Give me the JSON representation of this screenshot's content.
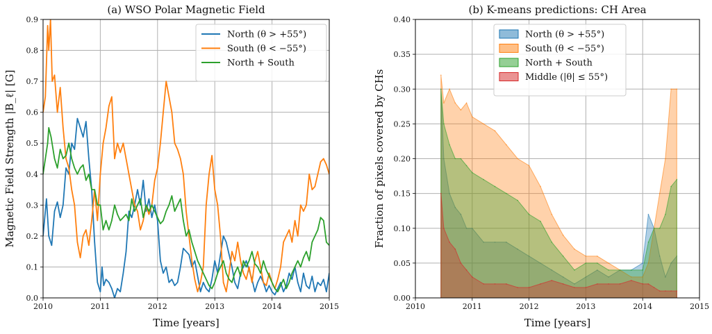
{
  "chart_data": [
    {
      "type": "line",
      "title": "(a) WSO Polar Magnetic Field",
      "xlabel": "Time [years]",
      "ylabel": "Magnetic Field Strength |B_ℓ| [G]",
      "xlim": [
        2010,
        2015
      ],
      "ylim": [
        0,
        0.9
      ],
      "xticks": [
        "2010",
        "2011",
        "2012",
        "2013",
        "2014",
        "2015"
      ],
      "yticks": [
        "0.0",
        "0.1",
        "0.2",
        "0.3",
        "0.4",
        "0.5",
        "0.6",
        "0.7",
        "0.8",
        "0.9"
      ],
      "grid": true,
      "legend_position": "top-right",
      "series": [
        {
          "name": "North (θ > +55°)",
          "color": "#1f77b4",
          "x": [
            2010.0,
            2010.06,
            2010.1,
            2010.15,
            2010.2,
            2010.25,
            2010.3,
            2010.35,
            2010.4,
            2010.45,
            2010.5,
            2010.55,
            2010.6,
            2010.65,
            2010.7,
            2010.75,
            2010.8,
            2010.85,
            2010.9,
            2010.95,
            2011.0,
            2011.03,
            2011.06,
            2011.1,
            2011.15,
            2011.2,
            2011.25,
            2011.3,
            2011.35,
            2011.4,
            2011.45,
            2011.5,
            2011.55,
            2011.6,
            2011.65,
            2011.7,
            2011.75,
            2011.8,
            2011.85,
            2011.9,
            2011.95,
            2012.0,
            2012.05,
            2012.1,
            2012.15,
            2012.2,
            2012.25,
            2012.3,
            2012.35,
            2012.4,
            2012.45,
            2012.5,
            2012.55,
            2012.6,
            2012.65,
            2012.7,
            2012.75,
            2012.8,
            2012.85,
            2012.9,
            2012.95,
            2013.0,
            2013.05,
            2013.1,
            2013.15,
            2013.2,
            2013.25,
            2013.3,
            2013.35,
            2013.4,
            2013.45,
            2013.5,
            2013.55,
            2013.6,
            2013.65,
            2013.7,
            2013.75,
            2013.8,
            2013.85,
            2013.9,
            2013.95,
            2014.0,
            2014.05,
            2014.1,
            2014.15,
            2014.2,
            2014.25,
            2014.3,
            2014.35,
            2014.4,
            2014.45,
            2014.5,
            2014.55,
            2014.6,
            2014.65,
            2014.7,
            2014.75,
            2014.8,
            2014.85,
            2014.9,
            2014.95,
            2015.0
          ],
          "values": [
            0.2,
            0.32,
            0.2,
            0.17,
            0.28,
            0.31,
            0.26,
            0.3,
            0.42,
            0.4,
            0.5,
            0.48,
            0.58,
            0.55,
            0.52,
            0.57,
            0.45,
            0.35,
            0.18,
            0.05,
            0.02,
            0.1,
            0.04,
            0.06,
            0.05,
            0.03,
            0.0,
            0.03,
            0.02,
            0.08,
            0.15,
            0.28,
            0.26,
            0.3,
            0.35,
            0.3,
            0.38,
            0.28,
            0.32,
            0.26,
            0.3,
            0.25,
            0.12,
            0.08,
            0.1,
            0.05,
            0.06,
            0.04,
            0.05,
            0.1,
            0.16,
            0.15,
            0.14,
            0.1,
            0.12,
            0.07,
            0.02,
            0.05,
            0.03,
            0.02,
            0.06,
            0.12,
            0.08,
            0.14,
            0.2,
            0.18,
            0.14,
            0.1,
            0.05,
            0.03,
            0.08,
            0.1,
            0.12,
            0.09,
            0.06,
            0.02,
            0.05,
            0.07,
            0.05,
            0.02,
            0.04,
            0.02,
            0.01,
            0.03,
            0.05,
            0.02,
            0.04,
            0.08,
            0.06,
            0.1,
            0.05,
            0.02,
            0.08,
            0.04,
            0.03,
            0.07,
            0.02,
            0.05,
            0.04,
            0.06,
            0.02,
            0.08
          ]
        },
        {
          "name": "South (θ < −55°)",
          "color": "#ff7f0e",
          "x": [
            2010.0,
            2010.04,
            2010.08,
            2010.1,
            2010.13,
            2010.16,
            2010.2,
            2010.25,
            2010.3,
            2010.35,
            2010.4,
            2010.45,
            2010.5,
            2010.55,
            2010.6,
            2010.65,
            2010.7,
            2010.75,
            2010.8,
            2010.85,
            2010.9,
            2010.95,
            2011.0,
            2011.05,
            2011.1,
            2011.15,
            2011.2,
            2011.25,
            2011.3,
            2011.35,
            2011.4,
            2011.45,
            2011.5,
            2011.55,
            2011.6,
            2011.65,
            2011.7,
            2011.75,
            2011.8,
            2011.85,
            2011.9,
            2011.95,
            2012.0,
            2012.05,
            2012.1,
            2012.15,
            2012.2,
            2012.25,
            2012.3,
            2012.35,
            2012.4,
            2012.45,
            2012.5,
            2012.55,
            2012.6,
            2012.65,
            2012.7,
            2012.75,
            2012.8,
            2012.85,
            2012.9,
            2012.95,
            2013.0,
            2013.05,
            2013.1,
            2013.15,
            2013.2,
            2013.25,
            2013.3,
            2013.35,
            2013.4,
            2013.45,
            2013.5,
            2013.55,
            2013.6,
            2013.65,
            2013.7,
            2013.75,
            2013.8,
            2013.85,
            2013.9,
            2013.95,
            2014.0,
            2014.05,
            2014.1,
            2014.15,
            2014.2,
            2014.25,
            2014.3,
            2014.35,
            2014.4,
            2014.45,
            2014.5,
            2014.55,
            2014.6,
            2014.65,
            2014.7,
            2014.75,
            2014.8,
            2014.85,
            2014.9,
            2014.95,
            2015.0
          ],
          "values": [
            0.6,
            0.65,
            0.88,
            0.8,
            0.9,
            0.7,
            0.72,
            0.6,
            0.68,
            0.55,
            0.45,
            0.42,
            0.35,
            0.3,
            0.18,
            0.13,
            0.2,
            0.22,
            0.17,
            0.25,
            0.35,
            0.25,
            0.4,
            0.5,
            0.55,
            0.62,
            0.65,
            0.45,
            0.5,
            0.47,
            0.5,
            0.45,
            0.4,
            0.35,
            0.3,
            0.28,
            0.22,
            0.25,
            0.3,
            0.27,
            0.3,
            0.38,
            0.42,
            0.5,
            0.6,
            0.7,
            0.65,
            0.6,
            0.5,
            0.48,
            0.45,
            0.4,
            0.28,
            0.2,
            0.12,
            0.06,
            0.02,
            0.05,
            0.1,
            0.3,
            0.4,
            0.46,
            0.35,
            0.3,
            0.2,
            0.05,
            0.02,
            0.08,
            0.15,
            0.12,
            0.18,
            0.12,
            0.08,
            0.06,
            0.1,
            0.05,
            0.12,
            0.15,
            0.1,
            0.05,
            0.04,
            0.08,
            0.05,
            0.03,
            0.06,
            0.1,
            0.18,
            0.2,
            0.22,
            0.18,
            0.25,
            0.2,
            0.3,
            0.28,
            0.3,
            0.4,
            0.35,
            0.36,
            0.4,
            0.44,
            0.45,
            0.43,
            0.4
          ]
        },
        {
          "name": "North + South",
          "color": "#2ca02c",
          "x": [
            2010.0,
            2010.04,
            2010.08,
            2010.1,
            2010.14,
            2010.2,
            2010.25,
            2010.3,
            2010.35,
            2010.4,
            2010.45,
            2010.5,
            2010.55,
            2010.6,
            2010.65,
            2010.7,
            2010.75,
            2010.8,
            2010.85,
            2010.9,
            2010.95,
            2011.0,
            2011.05,
            2011.1,
            2011.15,
            2011.2,
            2011.25,
            2011.3,
            2011.35,
            2011.4,
            2011.45,
            2011.5,
            2011.55,
            2011.6,
            2011.65,
            2011.7,
            2011.75,
            2011.8,
            2011.85,
            2011.9,
            2011.95,
            2012.0,
            2012.05,
            2012.1,
            2012.15,
            2012.2,
            2012.25,
            2012.3,
            2012.35,
            2012.4,
            2012.45,
            2012.5,
            2012.55,
            2012.6,
            2012.65,
            2012.7,
            2012.75,
            2012.8,
            2012.85,
            2012.9,
            2012.95,
            2013.0,
            2013.05,
            2013.1,
            2013.15,
            2013.2,
            2013.25,
            2013.3,
            2013.35,
            2013.4,
            2013.45,
            2013.5,
            2013.55,
            2013.6,
            2013.65,
            2013.7,
            2013.75,
            2013.8,
            2013.85,
            2013.9,
            2013.95,
            2014.0,
            2014.05,
            2014.1,
            2014.15,
            2014.2,
            2014.25,
            2014.3,
            2014.35,
            2014.4,
            2014.45,
            2014.5,
            2014.55,
            2014.6,
            2014.65,
            2014.7,
            2014.75,
            2014.8,
            2014.85,
            2014.9,
            2014.95,
            2015.0
          ],
          "values": [
            0.4,
            0.45,
            0.5,
            0.55,
            0.52,
            0.45,
            0.42,
            0.48,
            0.45,
            0.46,
            0.5,
            0.45,
            0.42,
            0.4,
            0.42,
            0.43,
            0.38,
            0.4,
            0.35,
            0.35,
            0.3,
            0.3,
            0.22,
            0.25,
            0.22,
            0.25,
            0.3,
            0.27,
            0.25,
            0.26,
            0.27,
            0.25,
            0.32,
            0.28,
            0.3,
            0.32,
            0.26,
            0.3,
            0.28,
            0.3,
            0.28,
            0.26,
            0.24,
            0.25,
            0.28,
            0.3,
            0.33,
            0.28,
            0.3,
            0.32,
            0.25,
            0.2,
            0.22,
            0.18,
            0.15,
            0.12,
            0.1,
            0.08,
            0.06,
            0.04,
            0.03,
            0.05,
            0.08,
            0.1,
            0.12,
            0.08,
            0.06,
            0.05,
            0.08,
            0.1,
            0.07,
            0.12,
            0.1,
            0.12,
            0.15,
            0.11,
            0.1,
            0.08,
            0.12,
            0.09,
            0.07,
            0.05,
            0.03,
            0.02,
            0.04,
            0.06,
            0.03,
            0.05,
            0.08,
            0.1,
            0.12,
            0.1,
            0.13,
            0.15,
            0.12,
            0.18,
            0.2,
            0.22,
            0.26,
            0.25,
            0.18,
            0.17
          ]
        }
      ]
    },
    {
      "type": "area",
      "title": "(b) K-means predictions: CH Area",
      "xlabel": "Time [years]",
      "ylabel": "Fraction of pixels covered by CHs",
      "xlim": [
        2010,
        2015
      ],
      "ylim": [
        0,
        0.4
      ],
      "xticks": [
        "2010",
        "2011",
        "2012",
        "2013",
        "2014",
        "2015"
      ],
      "yticks": [
        "0.00",
        "0.05",
        "0.10",
        "0.15",
        "0.20",
        "0.25",
        "0.30",
        "0.35",
        "0.40"
      ],
      "grid": true,
      "legend_position": "top-center",
      "series": [
        {
          "name": "North (θ > +55°)",
          "color": "#1f77b4",
          "x": [
            2010.45,
            2010.5,
            2010.6,
            2010.7,
            2010.8,
            2010.9,
            2011.0,
            2011.2,
            2011.4,
            2011.6,
            2011.8,
            2012.0,
            2012.2,
            2012.4,
            2012.6,
            2012.8,
            2013.0,
            2013.2,
            2013.4,
            2013.6,
            2013.8,
            2014.0,
            2014.1,
            2014.2,
            2014.3,
            2014.4,
            2014.5,
            2014.6
          ],
          "values": [
            0.3,
            0.2,
            0.15,
            0.13,
            0.12,
            0.1,
            0.1,
            0.08,
            0.08,
            0.08,
            0.07,
            0.06,
            0.05,
            0.04,
            0.03,
            0.02,
            0.03,
            0.04,
            0.03,
            0.04,
            0.04,
            0.05,
            0.12,
            0.1,
            0.06,
            0.03,
            0.05,
            0.06
          ]
        },
        {
          "name": "South (θ < −55°)",
          "color": "#ff7f0e",
          "x": [
            2010.45,
            2010.5,
            2010.6,
            2010.7,
            2010.8,
            2010.9,
            2011.0,
            2011.2,
            2011.4,
            2011.6,
            2011.8,
            2012.0,
            2012.2,
            2012.4,
            2012.6,
            2012.8,
            2013.0,
            2013.2,
            2013.4,
            2013.6,
            2013.8,
            2014.0,
            2014.1,
            2014.2,
            2014.3,
            2014.4,
            2014.5,
            2014.6
          ],
          "values": [
            0.32,
            0.28,
            0.3,
            0.28,
            0.27,
            0.28,
            0.26,
            0.25,
            0.24,
            0.22,
            0.2,
            0.19,
            0.16,
            0.12,
            0.09,
            0.07,
            0.06,
            0.06,
            0.05,
            0.04,
            0.03,
            0.03,
            0.05,
            0.1,
            0.15,
            0.2,
            0.3,
            0.3
          ]
        },
        {
          "name": "North + South",
          "color": "#2ca02c",
          "x": [
            2010.45,
            2010.5,
            2010.6,
            2010.7,
            2010.8,
            2010.9,
            2011.0,
            2011.2,
            2011.4,
            2011.6,
            2011.8,
            2012.0,
            2012.2,
            2012.4,
            2012.6,
            2012.8,
            2013.0,
            2013.2,
            2013.4,
            2013.6,
            2013.8,
            2014.0,
            2014.1,
            2014.2,
            2014.3,
            2014.4,
            2014.5,
            2014.6
          ],
          "values": [
            0.3,
            0.25,
            0.22,
            0.2,
            0.2,
            0.19,
            0.18,
            0.17,
            0.16,
            0.15,
            0.14,
            0.12,
            0.11,
            0.08,
            0.06,
            0.04,
            0.05,
            0.05,
            0.04,
            0.04,
            0.04,
            0.04,
            0.08,
            0.1,
            0.1,
            0.12,
            0.16,
            0.17
          ]
        },
        {
          "name": "Middle (|θ| ≤ 55°)",
          "color": "#d62728",
          "x": [
            2010.45,
            2010.5,
            2010.6,
            2010.7,
            2010.8,
            2010.9,
            2011.0,
            2011.2,
            2011.4,
            2011.6,
            2011.8,
            2012.0,
            2012.2,
            2012.4,
            2012.6,
            2012.8,
            2013.0,
            2013.2,
            2013.4,
            2013.6,
            2013.8,
            2014.0,
            2014.1,
            2014.2,
            2014.3,
            2014.4,
            2014.5,
            2014.6
          ],
          "values": [
            0.15,
            0.1,
            0.08,
            0.07,
            0.05,
            0.04,
            0.03,
            0.02,
            0.02,
            0.02,
            0.015,
            0.015,
            0.02,
            0.025,
            0.02,
            0.015,
            0.015,
            0.02,
            0.02,
            0.02,
            0.025,
            0.02,
            0.02,
            0.015,
            0.01,
            0.01,
            0.01,
            0.01
          ]
        }
      ]
    }
  ]
}
